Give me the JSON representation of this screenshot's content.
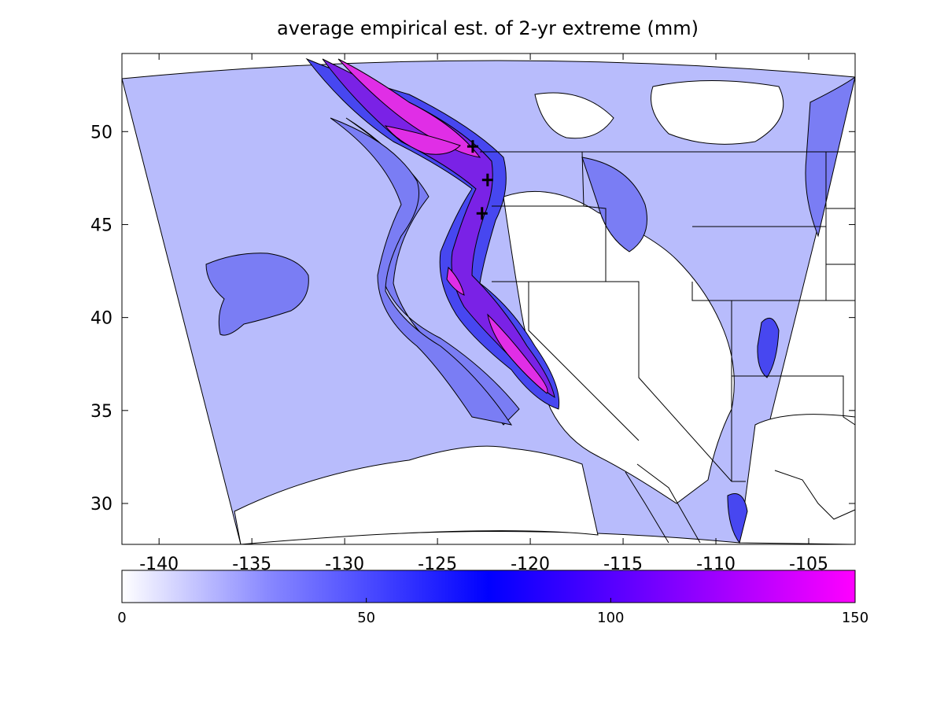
{
  "title": "average empirical est. of 2-yr extreme (mm)",
  "map": {
    "lon_range": [
      -142,
      -102.5
    ],
    "lat_range": [
      27.8,
      54.2
    ],
    "x_ticks": [
      -140,
      -135,
      -130,
      -125,
      -120,
      -115,
      -110,
      -105
    ],
    "y_ticks": [
      30,
      35,
      40,
      45,
      50
    ],
    "x_tick_labels": [
      "-140",
      "-135",
      "-130",
      "-125",
      "-120",
      "-115",
      "-110",
      "-105"
    ],
    "y_tick_labels": [
      "30",
      "35",
      "40",
      "45",
      "50"
    ],
    "markers": [
      {
        "name": "station-vancouver",
        "lon": -123.1,
        "lat": 49.2
      },
      {
        "name": "station-seattle",
        "lon": -122.3,
        "lat": 47.4
      },
      {
        "name": "station-portland",
        "lon": -122.6,
        "lat": 45.6
      }
    ]
  },
  "colorbar": {
    "min": 0,
    "max": 150,
    "ticks": [
      0,
      50,
      100,
      150
    ],
    "tick_labels": [
      "0",
      "50",
      "100",
      "150"
    ],
    "colors": [
      "#ffffff",
      "#8888ff",
      "#0000ff",
      "#ff00ff"
    ]
  },
  "colors": {
    "level_0_20": "#ffffff",
    "level_20_40": "#b8bcfc",
    "level_40_60": "#7a7df4",
    "level_60_80": "#4747f0",
    "level_80_100": "#7a22e6",
    "level_100_150": "#e02ee6"
  }
}
